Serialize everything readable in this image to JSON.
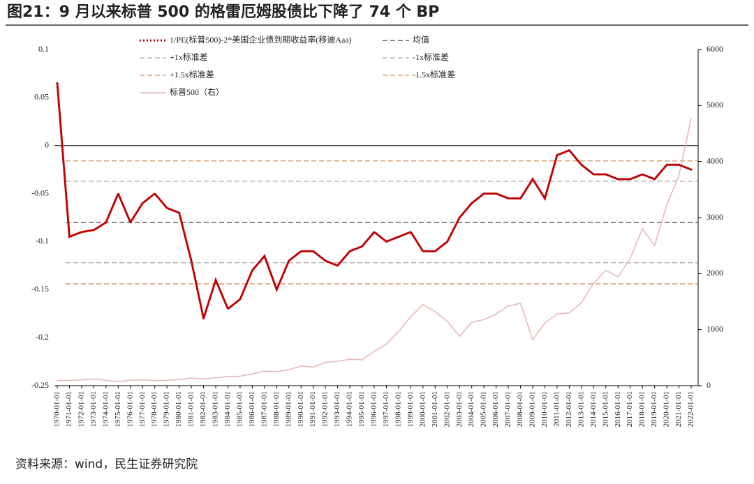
{
  "chart_data": {
    "type": "line",
    "title": "图21：9 月以来标普 500 的格雷厄姆股债比下降了 74 个 BP",
    "source": "资料来源：wind，民生证券研究院",
    "x": [
      "1970-01-01",
      "1971-01-01",
      "1972-01-01",
      "1973-01-01",
      "1974-01-01",
      "1975-01-01",
      "1976-01-01",
      "1977-01-01",
      "1978-01-01",
      "1979-01-01",
      "1980-01-01",
      "1981-01-01",
      "1982-01-01",
      "1983-01-01",
      "1984-01-01",
      "1985-01-01",
      "1986-01-01",
      "1987-01-01",
      "1988-01-01",
      "1989-01-01",
      "1990-01-01",
      "1991-01-01",
      "1992-01-01",
      "1993-01-01",
      "1994-01-01",
      "1995-01-01",
      "1996-01-01",
      "1997-01-01",
      "1998-01-01",
      "1999-01-01",
      "2000-01-01",
      "2001-01-01",
      "2002-01-01",
      "2003-01-01",
      "2004-01-01",
      "2005-01-01",
      "2006-01-01",
      "2007-01-01",
      "2008-01-01",
      "2009-01-01",
      "2010-01-01",
      "2011-01-01",
      "2012-01-01",
      "2013-01-01",
      "2014-01-01",
      "2015-01-01",
      "2016-01-01",
      "2017-01-01",
      "2018-01-01",
      "2019-01-01",
      "2020-01-01",
      "2021-01-01",
      "2022-01-01"
    ],
    "series": [
      {
        "name": "1/PE(标普500)-2*美国企业债到期收益率(移迪Aaa)",
        "color": "#c00000",
        "style": "dotted",
        "values": [
          0.065,
          -0.095,
          -0.09,
          -0.088,
          -0.08,
          -0.05,
          -0.08,
          -0.06,
          -0.05,
          -0.065,
          -0.07,
          -0.12,
          -0.18,
          -0.14,
          -0.17,
          -0.16,
          -0.13,
          -0.115,
          -0.15,
          -0.12,
          -0.11,
          -0.11,
          -0.12,
          -0.125,
          -0.11,
          -0.105,
          -0.09,
          -0.1,
          -0.095,
          -0.09,
          -0.11,
          -0.11,
          -0.1,
          -0.075,
          -0.06,
          -0.05,
          -0.05,
          -0.055,
          -0.055,
          -0.035,
          -0.055,
          -0.01,
          -0.005,
          -0.02,
          -0.03,
          -0.03,
          -0.035,
          -0.035,
          -0.03,
          -0.035,
          -0.02,
          -0.02,
          -0.025
        ]
      },
      {
        "name": "标普500（右）",
        "color": "#e8b4b4",
        "style": "solid",
        "axis": "y2",
        "values": [
          90,
          95,
          103,
          118,
          97,
          70,
          100,
          103,
          90,
          96,
          108,
          135,
          120,
          140,
          165,
          168,
          210,
          260,
          250,
          285,
          350,
          330,
          415,
          435,
          470,
          460,
          615,
          740,
          970,
          1230,
          1450,
          1320,
          1150,
          880,
          1130,
          1180,
          1280,
          1420,
          1470,
          820,
          1120,
          1280,
          1300,
          1480,
          1830,
          2060,
          1940,
          2270,
          2800,
          2500,
          3230,
          3750,
          4770
        ]
      }
    ],
    "reference_lines": [
      {
        "name": "均值",
        "value": -0.08,
        "color": "#404040"
      },
      {
        "name": "+1x标准差",
        "value": -0.037,
        "color": "#a6a6a6"
      },
      {
        "name": "-1x标准差",
        "value": -0.122,
        "color": "#a6a6a6"
      },
      {
        "name": "+1.5x标准差",
        "value": -0.016,
        "color": "#d9895a"
      },
      {
        "name": "-1.5x标准差",
        "value": -0.144,
        "color": "#d9895a"
      }
    ],
    "ylim": [
      -0.25,
      0.1
    ],
    "yticks": [
      -0.25,
      -0.2,
      -0.15,
      -0.1,
      -0.05,
      0,
      0.05,
      0.1
    ],
    "y2lim": [
      0,
      6000
    ],
    "y2ticks": [
      0,
      1000,
      2000,
      3000,
      4000,
      5000,
      6000
    ]
  }
}
